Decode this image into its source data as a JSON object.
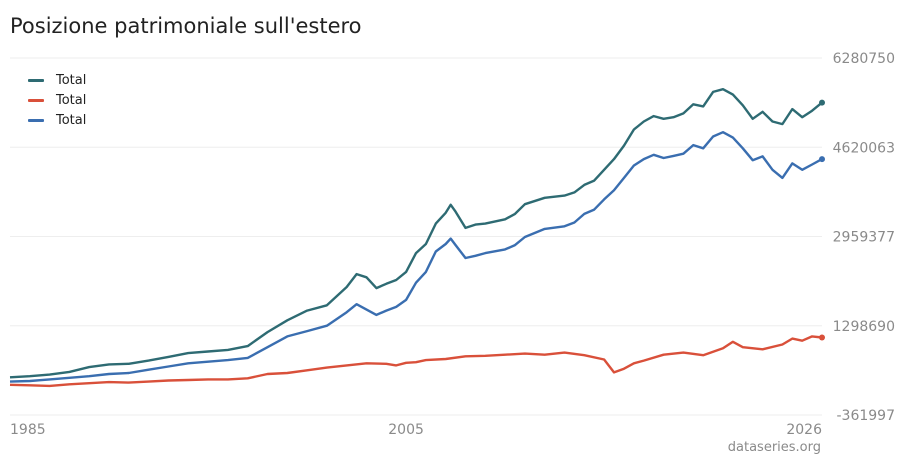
{
  "chart_data": {
    "type": "line",
    "title": "Posizione patrimoniale sull'estero",
    "credit": "dataseries.org",
    "x_range": [
      1985,
      2026
    ],
    "ylim": [
      -361997,
      6280750
    ],
    "yticks": [
      "6280750",
      "4620063",
      "2959377",
      "1298690",
      "-361997"
    ],
    "ytick_values": [
      6280750,
      4620063,
      2959377,
      1298690,
      -361997
    ],
    "xticks": [
      "1985",
      "2005",
      "2026"
    ],
    "xtick_values": [
      1985,
      2005,
      2026
    ],
    "grid": true,
    "legend_position": "top-left",
    "series": [
      {
        "name": "Total",
        "color": "#2e6b73",
        "points": [
          [
            1985,
            340000
          ],
          [
            1986,
            360000
          ],
          [
            1987,
            390000
          ],
          [
            1988,
            440000
          ],
          [
            1989,
            530000
          ],
          [
            1990,
            580000
          ],
          [
            1991,
            590000
          ],
          [
            1992,
            650000
          ],
          [
            1993,
            720000
          ],
          [
            1994,
            790000
          ],
          [
            1995,
            820000
          ],
          [
            1996,
            850000
          ],
          [
            1997,
            920000
          ],
          [
            1998,
            1180000
          ],
          [
            1999,
            1400000
          ],
          [
            2000,
            1580000
          ],
          [
            2001,
            1680000
          ],
          [
            2002,
            2020000
          ],
          [
            2002.5,
            2260000
          ],
          [
            2003,
            2200000
          ],
          [
            2003.5,
            2000000
          ],
          [
            2004,
            2080000
          ],
          [
            2004.5,
            2150000
          ],
          [
            2005,
            2300000
          ],
          [
            2005.5,
            2650000
          ],
          [
            2006,
            2820000
          ],
          [
            2006.5,
            3200000
          ],
          [
            2007,
            3400000
          ],
          [
            2007.25,
            3550000
          ],
          [
            2007.5,
            3420000
          ],
          [
            2008,
            3120000
          ],
          [
            2008.5,
            3180000
          ],
          [
            2009,
            3200000
          ],
          [
            2010,
            3280000
          ],
          [
            2010.5,
            3380000
          ],
          [
            2011,
            3560000
          ],
          [
            2012,
            3680000
          ],
          [
            2013,
            3720000
          ],
          [
            2013.5,
            3780000
          ],
          [
            2014,
            3920000
          ],
          [
            2014.5,
            4000000
          ],
          [
            2015,
            4200000
          ],
          [
            2015.5,
            4400000
          ],
          [
            2016,
            4650000
          ],
          [
            2016.5,
            4950000
          ],
          [
            2017,
            5100000
          ],
          [
            2017.5,
            5200000
          ],
          [
            2018,
            5150000
          ],
          [
            2018.5,
            5180000
          ],
          [
            2019,
            5250000
          ],
          [
            2019.5,
            5420000
          ],
          [
            2020,
            5380000
          ],
          [
            2020.5,
            5650000
          ],
          [
            2021,
            5700000
          ],
          [
            2021.5,
            5600000
          ],
          [
            2022,
            5400000
          ],
          [
            2022.5,
            5150000
          ],
          [
            2023,
            5280000
          ],
          [
            2023.5,
            5100000
          ],
          [
            2024,
            5050000
          ],
          [
            2024.5,
            5330000
          ],
          [
            2025,
            5180000
          ],
          [
            2025.5,
            5300000
          ],
          [
            2026,
            5450000
          ]
        ]
      },
      {
        "name": "Total",
        "color": "#d9503a",
        "points": [
          [
            1985,
            200000
          ],
          [
            1986,
            190000
          ],
          [
            1987,
            180000
          ],
          [
            1988,
            210000
          ],
          [
            1989,
            230000
          ],
          [
            1990,
            250000
          ],
          [
            1991,
            240000
          ],
          [
            1992,
            260000
          ],
          [
            1993,
            280000
          ],
          [
            1994,
            290000
          ],
          [
            1995,
            300000
          ],
          [
            1996,
            300000
          ],
          [
            1997,
            320000
          ],
          [
            1998,
            400000
          ],
          [
            1999,
            420000
          ],
          [
            2000,
            470000
          ],
          [
            2001,
            520000
          ],
          [
            2002,
            560000
          ],
          [
            2003,
            600000
          ],
          [
            2004,
            590000
          ],
          [
            2004.5,
            560000
          ],
          [
            2005,
            610000
          ],
          [
            2005.5,
            620000
          ],
          [
            2006,
            660000
          ],
          [
            2007,
            680000
          ],
          [
            2008,
            730000
          ],
          [
            2009,
            740000
          ],
          [
            2010,
            760000
          ],
          [
            2011,
            780000
          ],
          [
            2012,
            760000
          ],
          [
            2013,
            800000
          ],
          [
            2014,
            750000
          ],
          [
            2015,
            670000
          ],
          [
            2015.5,
            430000
          ],
          [
            2016,
            500000
          ],
          [
            2016.5,
            600000
          ],
          [
            2017,
            650000
          ],
          [
            2018,
            760000
          ],
          [
            2019,
            800000
          ],
          [
            2020,
            750000
          ],
          [
            2021,
            880000
          ],
          [
            2021.5,
            1000000
          ],
          [
            2022,
            900000
          ],
          [
            2023,
            860000
          ],
          [
            2024,
            950000
          ],
          [
            2024.5,
            1060000
          ],
          [
            2025,
            1020000
          ],
          [
            2025.5,
            1100000
          ],
          [
            2026,
            1080000
          ]
        ]
      },
      {
        "name": "Total",
        "color": "#3a6eb0",
        "points": [
          [
            1985,
            260000
          ],
          [
            1986,
            270000
          ],
          [
            1987,
            300000
          ],
          [
            1988,
            330000
          ],
          [
            1989,
            360000
          ],
          [
            1990,
            400000
          ],
          [
            1991,
            420000
          ],
          [
            1992,
            480000
          ],
          [
            1993,
            540000
          ],
          [
            1994,
            600000
          ],
          [
            1995,
            630000
          ],
          [
            1996,
            660000
          ],
          [
            1997,
            700000
          ],
          [
            1998,
            900000
          ],
          [
            1999,
            1100000
          ],
          [
            2000,
            1200000
          ],
          [
            2001,
            1300000
          ],
          [
            2002,
            1550000
          ],
          [
            2002.5,
            1700000
          ],
          [
            2003,
            1600000
          ],
          [
            2003.5,
            1500000
          ],
          [
            2004,
            1580000
          ],
          [
            2004.5,
            1650000
          ],
          [
            2005,
            1780000
          ],
          [
            2005.5,
            2100000
          ],
          [
            2006,
            2300000
          ],
          [
            2006.5,
            2680000
          ],
          [
            2007,
            2820000
          ],
          [
            2007.25,
            2920000
          ],
          [
            2007.5,
            2800000
          ],
          [
            2008,
            2560000
          ],
          [
            2008.5,
            2600000
          ],
          [
            2009,
            2650000
          ],
          [
            2010,
            2720000
          ],
          [
            2010.5,
            2800000
          ],
          [
            2011,
            2950000
          ],
          [
            2012,
            3100000
          ],
          [
            2013,
            3150000
          ],
          [
            2013.5,
            3220000
          ],
          [
            2014,
            3380000
          ],
          [
            2014.5,
            3460000
          ],
          [
            2015,
            3650000
          ],
          [
            2015.5,
            3820000
          ],
          [
            2016,
            4050000
          ],
          [
            2016.5,
            4280000
          ],
          [
            2017,
            4400000
          ],
          [
            2017.5,
            4480000
          ],
          [
            2018,
            4420000
          ],
          [
            2018.5,
            4460000
          ],
          [
            2019,
            4500000
          ],
          [
            2019.5,
            4660000
          ],
          [
            2020,
            4600000
          ],
          [
            2020.5,
            4820000
          ],
          [
            2021,
            4900000
          ],
          [
            2021.5,
            4800000
          ],
          [
            2022,
            4600000
          ],
          [
            2022.5,
            4380000
          ],
          [
            2023,
            4450000
          ],
          [
            2023.5,
            4200000
          ],
          [
            2024,
            4050000
          ],
          [
            2024.5,
            4320000
          ],
          [
            2025,
            4200000
          ],
          [
            2025.5,
            4300000
          ],
          [
            2026,
            4400000
          ]
        ]
      }
    ]
  }
}
